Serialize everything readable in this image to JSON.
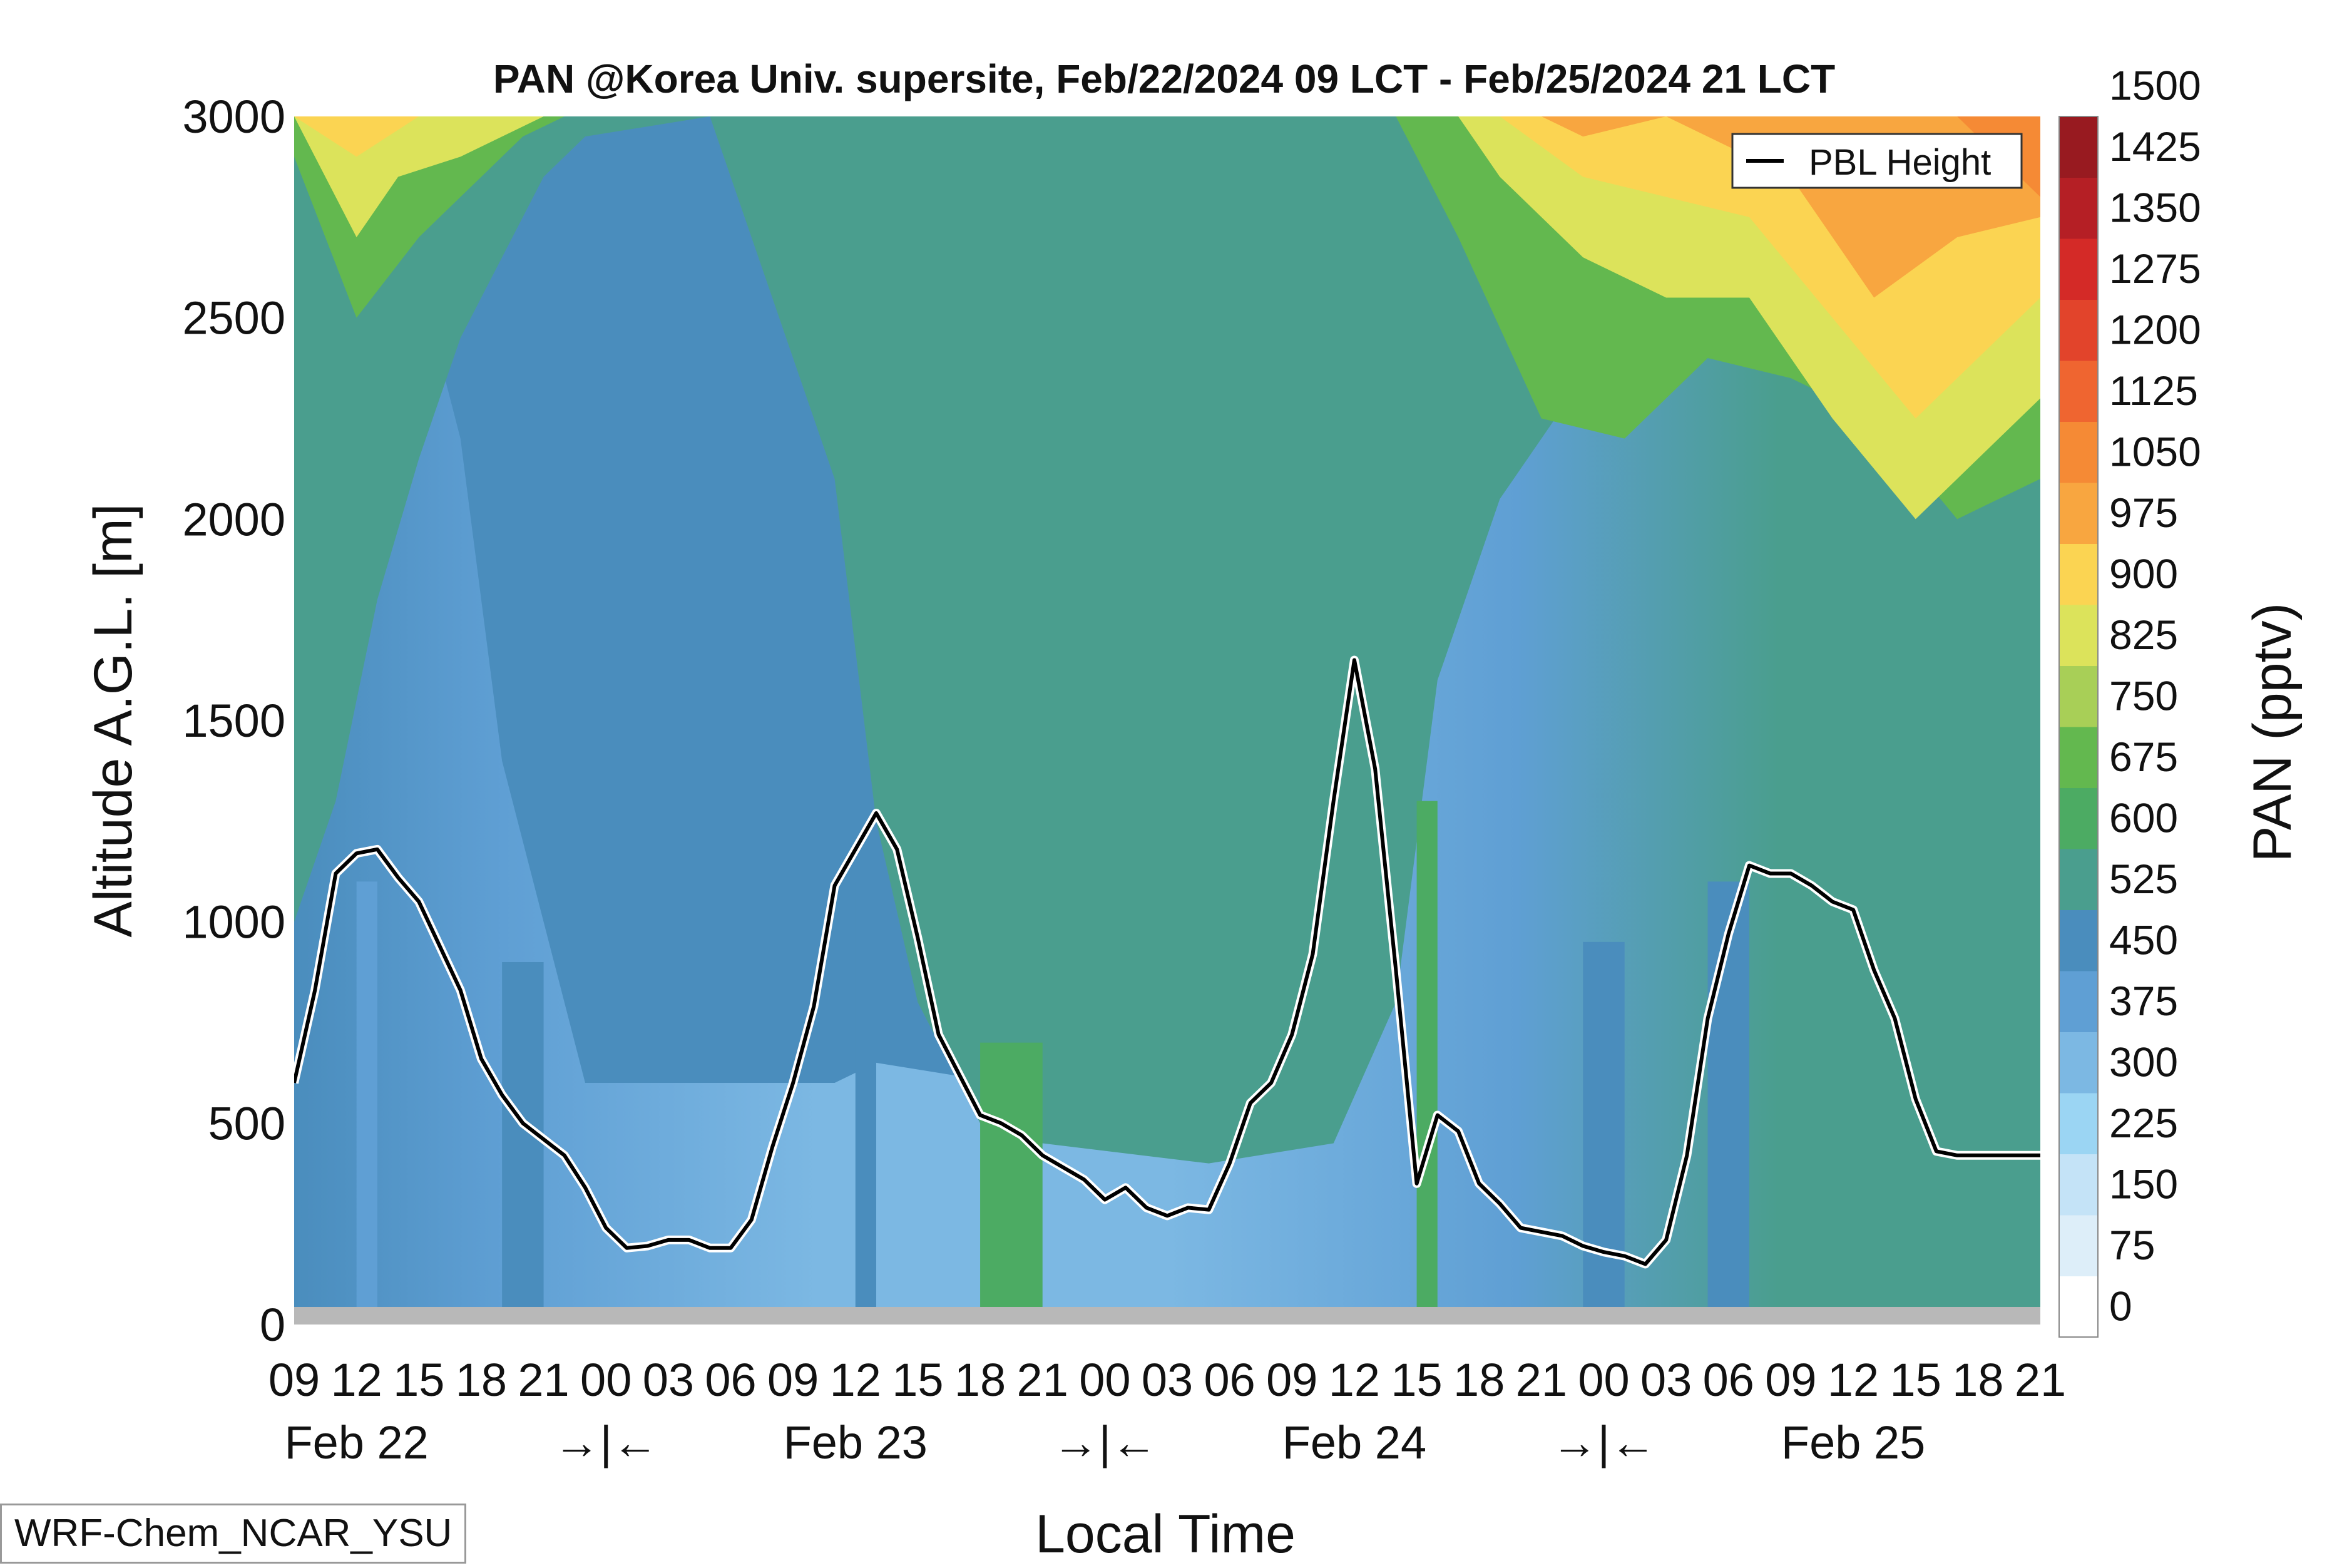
{
  "chart_data": {
    "type": "contour",
    "title": "PAN @Korea Univ. supersite, Feb/22/2024 09 LCT - Feb/25/2024 21 LCT",
    "xlabel": "Local Time",
    "ylabel": "Altitude A.G.L. [m]",
    "colorbar_label": "PAN (pptv)",
    "ylim": [
      0,
      3000
    ],
    "yticks": [
      0,
      500,
      1000,
      1500,
      2000,
      2500,
      3000
    ],
    "x_hours_start": "Feb/22/2024 09 LCT",
    "xlim_hours": [
      0,
      84
    ],
    "x_tick_labels": [
      "09",
      "12",
      "15",
      "18",
      "21",
      "00",
      "03",
      "06",
      "09",
      "12",
      "15",
      "18",
      "21",
      "00",
      "03",
      "06",
      "09",
      "12",
      "15",
      "18",
      "21",
      "00",
      "03",
      "06",
      "09",
      "12",
      "15",
      "18",
      "21"
    ],
    "day_labels": [
      "Feb 22",
      "Feb 23",
      "Feb 24",
      "Feb 25"
    ],
    "day_separator": "→|←",
    "levels": [
      0,
      75,
      150,
      225,
      300,
      375,
      450,
      525,
      600,
      675,
      750,
      825,
      900,
      975,
      1050,
      1125,
      1200,
      1275,
      1350,
      1425,
      1500
    ],
    "level_colors": [
      "#ffffff",
      "#ddeef9",
      "#c4e3f7",
      "#9bd5f3",
      "#7cb8e3",
      "#5f9fd4",
      "#4a8dbd",
      "#4a9e8e",
      "#4cab63",
      "#63b84f",
      "#a8cf57",
      "#dce35b",
      "#fbd452",
      "#f8a640",
      "#f58a35",
      "#ef6530",
      "#e2442b",
      "#d42a27",
      "#b51f25",
      "#981a20"
    ],
    "pbl_height": {
      "name": "PBL Height",
      "x_hours": [
        0,
        1,
        2,
        3,
        4,
        5,
        6,
        7,
        8,
        9,
        10,
        11,
        12,
        13,
        14,
        15,
        16,
        17,
        18,
        19,
        20,
        21,
        22,
        23,
        24,
        25,
        26,
        27,
        28,
        29,
        30,
        31,
        32,
        33,
        34,
        35,
        36,
        37,
        38,
        39,
        40,
        41,
        42,
        43,
        44,
        45,
        46,
        47,
        48,
        49,
        50,
        51,
        52,
        53,
        54,
        55,
        56,
        57,
        58,
        59,
        60,
        61,
        62,
        63,
        64,
        65,
        66,
        67,
        68,
        69,
        70,
        71,
        72,
        73,
        74,
        75,
        76,
        77,
        78,
        79,
        80,
        81,
        82,
        83,
        84
      ],
      "values": [
        600,
        830,
        1120,
        1170,
        1180,
        1110,
        1050,
        940,
        830,
        660,
        570,
        500,
        460,
        420,
        340,
        240,
        190,
        195,
        210,
        210,
        190,
        190,
        260,
        440,
        600,
        790,
        1090,
        1180,
        1270,
        1180,
        960,
        720,
        620,
        520,
        500,
        470,
        420,
        390,
        360,
        310,
        340,
        290,
        270,
        290,
        285,
        400,
        550,
        600,
        720,
        920,
        1300,
        1650,
        1380,
        880,
        350,
        520,
        480,
        350,
        300,
        240,
        230,
        220,
        195,
        180,
        170,
        150,
        210,
        420,
        760,
        970,
        1140,
        1120,
        1120,
        1090,
        1050,
        1030,
        880,
        760,
        560,
        430,
        420,
        420,
        420,
        420,
        420
      ]
    },
    "legend_position": "top-right",
    "grid": false
  },
  "model_label": "WRF-Chem_NCAR_YSU"
}
